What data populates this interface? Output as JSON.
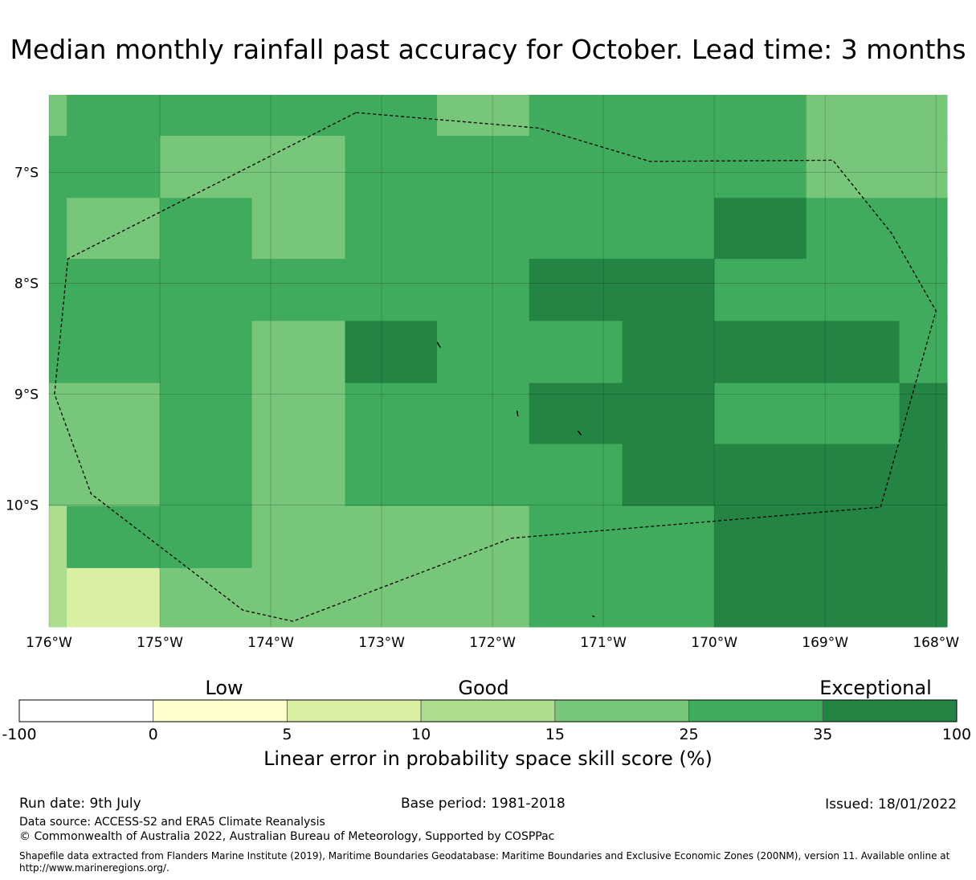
{
  "title": "Median monthly rainfall past accuracy for October. Lead time: 3 months",
  "map": {
    "lon_range": [
      -176,
      -167.9
    ],
    "lat_range": [
      -11.1,
      -6.3
    ],
    "lon_ticks": [
      {
        "value": -176,
        "label": "176°W"
      },
      {
        "value": -175,
        "label": "175°W"
      },
      {
        "value": -174,
        "label": "174°W"
      },
      {
        "value": -173,
        "label": "173°W"
      },
      {
        "value": -172,
        "label": "172°W"
      },
      {
        "value": -171,
        "label": "171°W"
      },
      {
        "value": -170,
        "label": "170°W"
      },
      {
        "value": -169,
        "label": "169°W"
      },
      {
        "value": -168,
        "label": "168°W"
      }
    ],
    "lat_ticks": [
      {
        "value": -7,
        "label": "7°S"
      },
      {
        "value": -8,
        "label": "8°S"
      },
      {
        "value": -9,
        "label": "9°S"
      },
      {
        "value": -10,
        "label": "10°S"
      }
    ],
    "grid": true,
    "lon_edges": [
      -176,
      -175.84,
      -175,
      -174.17,
      -173.33,
      -172.5,
      -171.67,
      -170.83,
      -170,
      -169.17,
      -168.33,
      -167.9
    ],
    "lat_edges": [
      -6.3,
      -6.67,
      -7.23,
      -7.78,
      -8.34,
      -8.9,
      -9.45,
      -10.01,
      -10.57,
      -11.1
    ],
    "cell_classes": [
      [
        4,
        5,
        5,
        5,
        5,
        4,
        5,
        5,
        5,
        4,
        4
      ],
      [
        5,
        5,
        4,
        4,
        5,
        5,
        5,
        5,
        5,
        4,
        4
      ],
      [
        5,
        4,
        5,
        4,
        5,
        5,
        5,
        5,
        6,
        5,
        5
      ],
      [
        5,
        5,
        5,
        5,
        5,
        5,
        6,
        6,
        5,
        5,
        5
      ],
      [
        5,
        5,
        5,
        4,
        6,
        5,
        5,
        6,
        6,
        6,
        5
      ],
      [
        4,
        4,
        5,
        4,
        5,
        5,
        6,
        6,
        5,
        5,
        6
      ],
      [
        4,
        4,
        5,
        4,
        5,
        5,
        5,
        6,
        6,
        6,
        6
      ],
      [
        3,
        5,
        5,
        4,
        4,
        4,
        5,
        5,
        6,
        6,
        6
      ],
      [
        3,
        2,
        4,
        4,
        4,
        4,
        5,
        5,
        6,
        6,
        6
      ]
    ],
    "eez_boundary": [
      [
        -173.23,
        -6.46
      ],
      [
        -171.58,
        -6.6
      ],
      [
        -170.58,
        -6.9
      ],
      [
        -168.93,
        -6.89
      ],
      [
        -168.4,
        -7.55
      ],
      [
        -168.0,
        -8.25
      ],
      [
        -168.5,
        -10.02
      ],
      [
        -171.83,
        -10.3
      ],
      [
        -173.8,
        -11.05
      ],
      [
        -174.25,
        -10.95
      ],
      [
        -175.62,
        -9.9
      ],
      [
        -175.95,
        -9.0
      ],
      [
        -175.83,
        -7.78
      ],
      [
        -173.23,
        -6.46
      ]
    ],
    "islands": [
      [
        [
          -172.5,
          -8.53
        ],
        [
          -172.47,
          -8.58
        ]
      ],
      [
        [
          -171.78,
          -9.15
        ],
        [
          -171.77,
          -9.2
        ]
      ],
      [
        [
          -171.23,
          -9.33
        ],
        [
          -171.2,
          -9.37
        ]
      ],
      [
        [
          -171.1,
          -11.0
        ],
        [
          -171.08,
          -11.01
        ]
      ]
    ]
  },
  "legend": {
    "categories": [
      "Low",
      "Good",
      "Exceptional"
    ],
    "boundaries": [
      "-100",
      "0",
      "5",
      "10",
      "15",
      "25",
      "35",
      "100"
    ],
    "colors": [
      "#ffffff",
      "#ffffcc",
      "#d9f0a3",
      "#addd8e",
      "#78c679",
      "#41ab5d",
      "#238443"
    ],
    "label": "Linear error in probability space skill score (%)"
  },
  "footer": {
    "run_date": "Run date: 9th July",
    "base_period": "Base period: 1981-2018",
    "issued": "Issued: 18/01/2022",
    "data_source": "Data source: ACCESS-S2 and ERA5 Climate Reanalysis",
    "copyright": "© Commonwealth of Australia 2022, Australian Bureau of Meteorology, Supported by COSPPac",
    "shapefile_note": "Shapefile data extracted from Flanders Marine Institute (2019), Maritime Boundaries Geodatabase: Maritime Boundaries and Exclusive Economic Zones (200NM), version 11. Available online at http://www.marineregions.org/."
  }
}
